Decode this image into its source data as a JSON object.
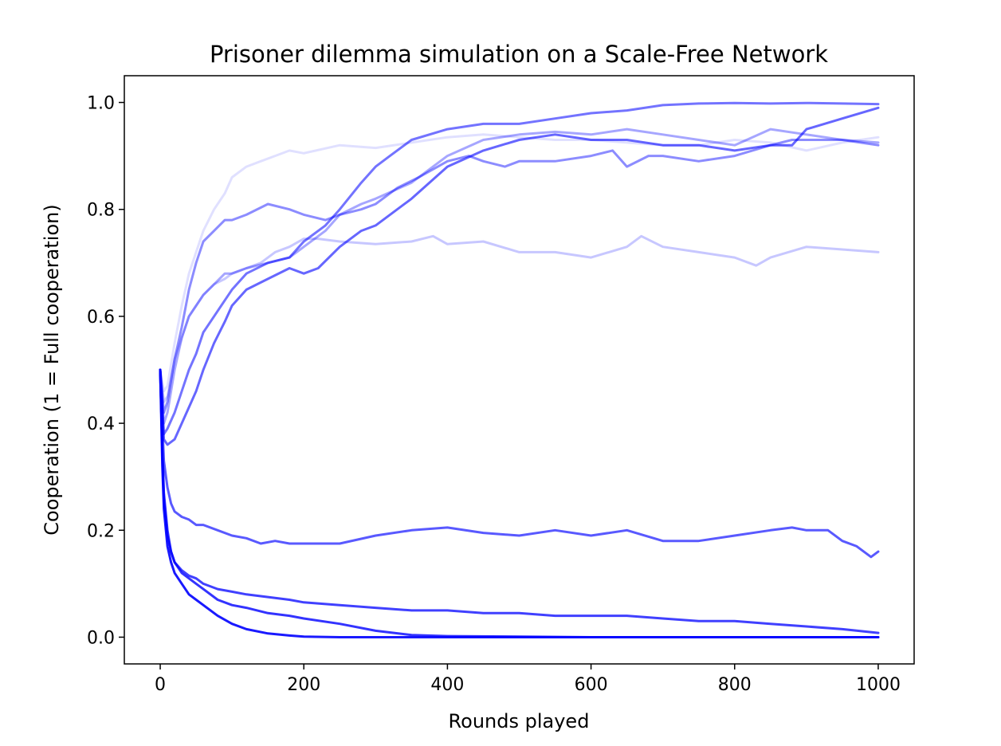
{
  "chart_data": {
    "type": "line",
    "title": "Prisoner dilemma simulation on a Scale-Free Network",
    "xlabel": "Rounds played",
    "ylabel": "Cooperation (1 = Full cooperation)",
    "xlim": [
      -50,
      1050
    ],
    "ylim": [
      -0.05,
      1.05
    ],
    "xticks": [
      0,
      200,
      400,
      600,
      800,
      1000
    ],
    "xtick_labels": [
      "0",
      "200",
      "400",
      "600",
      "800",
      "1000"
    ],
    "yticks": [
      0.0,
      0.2,
      0.4,
      0.6,
      0.8,
      1.0
    ],
    "ytick_labels": [
      "0.0",
      "0.2",
      "0.4",
      "0.6",
      "0.8",
      "1.0"
    ],
    "grid": false,
    "legend": "none",
    "series_color": "#0000ff",
    "series": [
      {
        "color": "#0000ff",
        "opacity": 0.12,
        "x": [
          0,
          5,
          10,
          20,
          30,
          40,
          50,
          60,
          75,
          90,
          100,
          120,
          140,
          160,
          180,
          200,
          250,
          300,
          350,
          400,
          450,
          500,
          550,
          600,
          650,
          700,
          750,
          800,
          850,
          900,
          950,
          1000
        ],
        "y": [
          0.5,
          0.46,
          0.47,
          0.55,
          0.62,
          0.68,
          0.72,
          0.76,
          0.8,
          0.83,
          0.86,
          0.88,
          0.89,
          0.9,
          0.91,
          0.905,
          0.92,
          0.915,
          0.925,
          0.935,
          0.94,
          0.935,
          0.93,
          0.93,
          0.925,
          0.92,
          0.92,
          0.93,
          0.925,
          0.91,
          0.925,
          0.935
        ]
      },
      {
        "color": "#0000ff",
        "opacity": 0.22,
        "x": [
          0,
          5,
          10,
          20,
          30,
          40,
          50,
          60,
          75,
          90,
          100,
          120,
          140,
          160,
          180,
          200,
          220,
          250,
          300,
          350,
          380,
          400,
          450,
          500,
          550,
          600,
          650,
          670,
          700,
          750,
          800,
          830,
          850,
          900,
          950,
          1000
        ],
        "y": [
          0.5,
          0.44,
          0.45,
          0.52,
          0.56,
          0.6,
          0.62,
          0.64,
          0.66,
          0.67,
          0.68,
          0.69,
          0.7,
          0.72,
          0.73,
          0.745,
          0.745,
          0.74,
          0.735,
          0.74,
          0.75,
          0.735,
          0.74,
          0.72,
          0.72,
          0.71,
          0.73,
          0.75,
          0.73,
          0.72,
          0.71,
          0.695,
          0.71,
          0.73,
          0.725,
          0.72
        ]
      },
      {
        "color": "#0000ff",
        "opacity": 0.35,
        "x": [
          0,
          5,
          10,
          20,
          30,
          40,
          50,
          60,
          75,
          90,
          100,
          120,
          150,
          180,
          200,
          230,
          250,
          280,
          300,
          350,
          400,
          450,
          500,
          550,
          600,
          650,
          700,
          750,
          800,
          850,
          900,
          950,
          1000
        ],
        "y": [
          0.5,
          0.4,
          0.42,
          0.5,
          0.56,
          0.6,
          0.62,
          0.64,
          0.66,
          0.68,
          0.68,
          0.69,
          0.7,
          0.71,
          0.73,
          0.76,
          0.79,
          0.81,
          0.82,
          0.85,
          0.9,
          0.93,
          0.94,
          0.945,
          0.94,
          0.95,
          0.94,
          0.93,
          0.92,
          0.95,
          0.94,
          0.93,
          0.925
        ]
      },
      {
        "color": "#0000ff",
        "opacity": 0.45,
        "x": [
          0,
          5,
          10,
          20,
          30,
          40,
          50,
          60,
          75,
          90,
          100,
          120,
          150,
          180,
          200,
          230,
          250,
          280,
          300,
          330,
          360,
          400,
          430,
          450,
          480,
          500,
          550,
          600,
          630,
          650,
          680,
          700,
          750,
          800,
          850,
          880,
          900,
          950,
          1000
        ],
        "y": [
          0.5,
          0.42,
          0.44,
          0.52,
          0.58,
          0.65,
          0.7,
          0.74,
          0.76,
          0.78,
          0.78,
          0.79,
          0.81,
          0.8,
          0.79,
          0.78,
          0.79,
          0.8,
          0.81,
          0.84,
          0.86,
          0.89,
          0.9,
          0.89,
          0.88,
          0.89,
          0.89,
          0.9,
          0.91,
          0.88,
          0.9,
          0.9,
          0.89,
          0.9,
          0.92,
          0.93,
          0.93,
          0.93,
          0.92
        ]
      },
      {
        "color": "#0000ff",
        "opacity": 0.55,
        "x": [
          0,
          5,
          10,
          20,
          30,
          40,
          50,
          60,
          75,
          90,
          100,
          120,
          150,
          180,
          200,
          230,
          250,
          280,
          300,
          320,
          350,
          400,
          450,
          500,
          550,
          600,
          650,
          700,
          750,
          800,
          850,
          900,
          950,
          1000
        ],
        "y": [
          0.5,
          0.38,
          0.39,
          0.42,
          0.46,
          0.5,
          0.53,
          0.57,
          0.6,
          0.63,
          0.65,
          0.68,
          0.7,
          0.71,
          0.74,
          0.77,
          0.8,
          0.85,
          0.88,
          0.9,
          0.93,
          0.95,
          0.96,
          0.96,
          0.97,
          0.98,
          0.985,
          0.995,
          0.998,
          0.999,
          0.998,
          0.999,
          0.998,
          0.997
        ]
      },
      {
        "color": "#0000ff",
        "opacity": 0.6,
        "x": [
          0,
          5,
          10,
          20,
          30,
          40,
          50,
          60,
          75,
          90,
          100,
          120,
          150,
          180,
          200,
          220,
          250,
          280,
          300,
          350,
          400,
          450,
          500,
          550,
          600,
          650,
          700,
          750,
          800,
          850,
          880,
          900,
          950,
          1000
        ],
        "y": [
          0.5,
          0.37,
          0.36,
          0.37,
          0.4,
          0.43,
          0.46,
          0.5,
          0.55,
          0.59,
          0.62,
          0.65,
          0.67,
          0.69,
          0.68,
          0.69,
          0.73,
          0.76,
          0.77,
          0.82,
          0.88,
          0.91,
          0.93,
          0.94,
          0.93,
          0.93,
          0.92,
          0.92,
          0.91,
          0.92,
          0.92,
          0.95,
          0.97,
          0.99
        ]
      },
      {
        "color": "#0000ff",
        "opacity": 0.65,
        "x": [
          0,
          3,
          5,
          10,
          15,
          20,
          30,
          40,
          50,
          60,
          80,
          100,
          120,
          140,
          160,
          180,
          200,
          250,
          300,
          350,
          400,
          450,
          500,
          550,
          600,
          650,
          700,
          750,
          800,
          850,
          880,
          900,
          930,
          950,
          970,
          990,
          1000
        ],
        "y": [
          0.5,
          0.4,
          0.33,
          0.28,
          0.25,
          0.235,
          0.225,
          0.22,
          0.21,
          0.21,
          0.2,
          0.19,
          0.185,
          0.175,
          0.18,
          0.175,
          0.175,
          0.175,
          0.19,
          0.2,
          0.205,
          0.195,
          0.19,
          0.2,
          0.19,
          0.2,
          0.18,
          0.18,
          0.19,
          0.2,
          0.205,
          0.2,
          0.2,
          0.18,
          0.17,
          0.15,
          0.16
        ]
      },
      {
        "color": "#0000ff",
        "opacity": 0.75,
        "x": [
          0,
          3,
          5,
          10,
          15,
          20,
          30,
          40,
          50,
          60,
          80,
          100,
          120,
          150,
          180,
          200,
          250,
          300,
          350,
          400,
          450,
          500,
          550,
          600,
          650,
          700,
          750,
          800,
          850,
          900,
          950,
          1000
        ],
        "y": [
          0.5,
          0.35,
          0.27,
          0.2,
          0.16,
          0.14,
          0.125,
          0.115,
          0.11,
          0.1,
          0.09,
          0.085,
          0.08,
          0.075,
          0.07,
          0.065,
          0.06,
          0.055,
          0.05,
          0.05,
          0.045,
          0.045,
          0.04,
          0.04,
          0.04,
          0.035,
          0.03,
          0.03,
          0.025,
          0.02,
          0.015,
          0.008
        ]
      },
      {
        "color": "#0000ff",
        "opacity": 0.8,
        "x": [
          0,
          3,
          5,
          10,
          15,
          20,
          30,
          40,
          50,
          60,
          80,
          100,
          120,
          150,
          180,
          200,
          250,
          300,
          350,
          400,
          500,
          600,
          700,
          800,
          900,
          1000
        ],
        "y": [
          0.5,
          0.35,
          0.26,
          0.19,
          0.16,
          0.14,
          0.12,
          0.11,
          0.1,
          0.09,
          0.07,
          0.06,
          0.055,
          0.045,
          0.04,
          0.035,
          0.025,
          0.012,
          0.004,
          0.002,
          0.001,
          0.0,
          0.0,
          0.0,
          0.0,
          0.0
        ]
      },
      {
        "color": "#0000ff",
        "opacity": 0.9,
        "x": [
          0,
          3,
          5,
          10,
          15,
          20,
          30,
          40,
          50,
          60,
          80,
          100,
          120,
          150,
          180,
          200,
          250,
          300,
          400,
          500,
          600,
          700,
          800,
          900,
          1000
        ],
        "y": [
          0.5,
          0.32,
          0.24,
          0.17,
          0.14,
          0.12,
          0.1,
          0.08,
          0.07,
          0.06,
          0.04,
          0.025,
          0.015,
          0.007,
          0.003,
          0.001,
          0.0,
          0.0,
          0.0,
          0.0,
          0.0,
          0.0,
          0.0,
          0.0,
          0.0
        ]
      }
    ]
  }
}
